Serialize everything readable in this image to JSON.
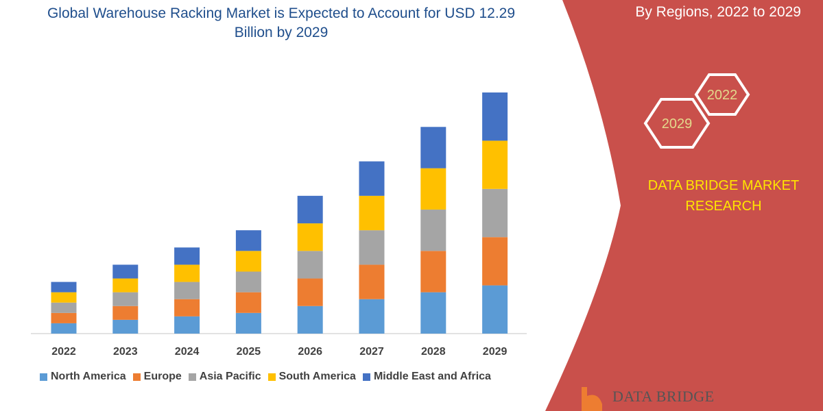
{
  "title": "Global Warehouse Racking Market is Expected to Account for USD 12.29 Billion by 2029",
  "subtitle": "By Regions, 2022 to 2029",
  "hexagons": [
    "2022",
    "2029"
  ],
  "brand": "DATA BRIDGE MARKET RESEARCH",
  "logo_text": "DATA BRIDGE",
  "colors": {
    "panel": "#c9504b",
    "title": "#1f4e8c",
    "brand": "#ffe600",
    "hex_text": "#e3d98c"
  },
  "chart_data": {
    "type": "bar",
    "stacked": true,
    "title": "",
    "xlabel": "",
    "ylabel": "",
    "categories": [
      "2022",
      "2023",
      "2024",
      "2025",
      "2026",
      "2027",
      "2028",
      "2029"
    ],
    "series": [
      {
        "name": "North America",
        "color": "#5b9bd5",
        "values": [
          0.3,
          0.4,
          0.5,
          0.6,
          0.8,
          1.0,
          1.2,
          1.4
        ]
      },
      {
        "name": "Europe",
        "color": "#ed7d31",
        "values": [
          0.3,
          0.4,
          0.5,
          0.6,
          0.8,
          1.0,
          1.2,
          1.4
        ]
      },
      {
        "name": "Asia Pacific",
        "color": "#a5a5a5",
        "values": [
          0.3,
          0.4,
          0.5,
          0.6,
          0.8,
          1.0,
          1.2,
          1.4
        ]
      },
      {
        "name": "South America",
        "color": "#ffc000",
        "values": [
          0.3,
          0.4,
          0.5,
          0.6,
          0.8,
          1.0,
          1.2,
          1.4
        ]
      },
      {
        "name": "Middle East and Africa",
        "color": "#4472c4",
        "values": [
          0.3,
          0.4,
          0.5,
          0.6,
          0.8,
          1.0,
          1.2,
          1.4
        ]
      }
    ],
    "legend": "bottom",
    "grid": false
  }
}
